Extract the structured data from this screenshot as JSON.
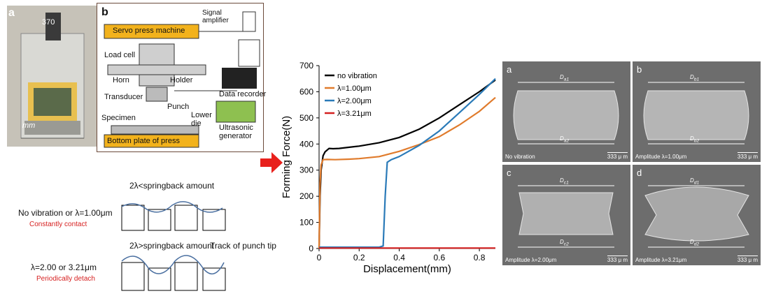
{
  "figure_a": {
    "letter": "a",
    "dim_label": "370",
    "mm_label": "mm"
  },
  "figure_b": {
    "letter": "b",
    "labels": {
      "servo_press": "Servo press machine",
      "signal_amplifier": "Signal\namplifier",
      "load_cell": "Load cell",
      "horn": "Horn",
      "transducer": "Transducer",
      "holder": "Holder",
      "punch": "Punch",
      "data_recorder": "Data recorder",
      "specimen": "Specimen",
      "lower_die": "Lower\ndie",
      "ultrasonic_generator": "Ultrasonic\ngenerator",
      "bottom_plate": "Bottom plate of press"
    }
  },
  "schematic": {
    "top_condition": "2λ<springback amount",
    "top_mode_label": "No vibration or λ=1.00μm",
    "top_mode_desc": "Constantly contact",
    "bottom_condition": "2λ>springback amount",
    "track_label": "Track of punch tip",
    "bottom_mode_label": "λ=2.00 or 3.21μm",
    "bottom_mode_desc": "Periodically detach"
  },
  "chart_data": {
    "type": "line",
    "xlabel": "Displacement(mm)",
    "ylabel": "Forming Force(N)",
    "xlim": [
      0,
      0.88
    ],
    "ylim": [
      0,
      700
    ],
    "xticks": [
      0,
      0.2,
      0.4,
      0.6,
      0.8
    ],
    "yticks": [
      0,
      100,
      200,
      300,
      400,
      500,
      600,
      700
    ],
    "legend_position": "top-left",
    "series": [
      {
        "name": "no vibration",
        "color": "#000000",
        "x": [
          0,
          0.005,
          0.01,
          0.02,
          0.03,
          0.05,
          0.07,
          0.1,
          0.2,
          0.3,
          0.4,
          0.5,
          0.6,
          0.7,
          0.8,
          0.88
        ],
        "y": [
          0,
          200,
          300,
          355,
          370,
          383,
          382,
          383,
          392,
          405,
          425,
          457,
          500,
          550,
          600,
          645
        ]
      },
      {
        "name": "λ=1.00μm",
        "color": "#e07b2c",
        "x": [
          0,
          0.005,
          0.01,
          0.02,
          0.04,
          0.08,
          0.15,
          0.2,
          0.3,
          0.4,
          0.5,
          0.6,
          0.7,
          0.8,
          0.88
        ],
        "y": [
          0,
          250,
          320,
          340,
          341,
          340,
          342,
          344,
          352,
          372,
          398,
          428,
          473,
          525,
          578
        ]
      },
      {
        "name": "λ=2.00μm",
        "color": "#2a7ab8",
        "x": [
          0,
          0.1,
          0.2,
          0.3,
          0.32,
          0.33,
          0.34,
          0.36,
          0.4,
          0.5,
          0.6,
          0.7,
          0.8,
          0.88
        ],
        "y": [
          5,
          5,
          5,
          5,
          10,
          200,
          330,
          340,
          352,
          395,
          450,
          520,
          590,
          650
        ]
      },
      {
        "name": "λ=3.21μm",
        "color": "#d42020",
        "x": [
          0,
          0.2,
          0.4,
          0.6,
          0.8,
          0.88
        ],
        "y": [
          2,
          2,
          2,
          2,
          2,
          2
        ]
      }
    ]
  },
  "sem": [
    {
      "letter": "a",
      "top": "D",
      "top_sub": "a1",
      "bottom": "D",
      "bottom_sub": "a2",
      "caption": "No vibration",
      "scale": "333 μ m"
    },
    {
      "letter": "b",
      "top": "D",
      "top_sub": "b1",
      "bottom": "D",
      "bottom_sub": "b2",
      "caption": "Amplitude λ=1.00μm",
      "scale": "333 μ m"
    },
    {
      "letter": "c",
      "top": "D",
      "top_sub": "c1",
      "bottom": "D",
      "bottom_sub": "c2",
      "caption": "Amplitude λ=2.00μm",
      "scale": "333 μ m"
    },
    {
      "letter": "d",
      "top": "D",
      "top_sub": "d1",
      "bottom": "D",
      "bottom_sub": "d2",
      "caption": "Amplitude λ=3.21μm",
      "scale": "333 μ m"
    }
  ]
}
